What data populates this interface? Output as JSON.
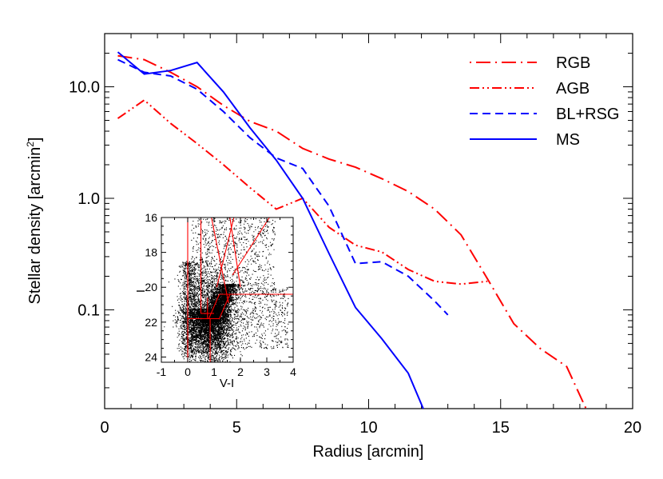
{
  "chart_data": [
    {
      "type": "line",
      "title": "",
      "xlabel": "Radius [arcmin]",
      "ylabel": "Stellar density [arcmin",
      "ylabel_sup": "2",
      "ylabel_close": "]",
      "xlim": [
        0,
        20
      ],
      "ylim": [
        0.013,
        30
      ],
      "yscale": "log",
      "x_ticks": [
        0,
        5,
        10,
        15,
        20
      ],
      "x_tick_labels": [
        "0",
        "5",
        "10",
        "15",
        "20"
      ],
      "y_ticks": [
        0.1,
        1.0,
        10.0
      ],
      "y_tick_labels": [
        "0.1",
        "1.0",
        "10.0"
      ],
      "grid": false,
      "legend_position": "top-right",
      "series": [
        {
          "name": "RGB",
          "color": "#ff0000",
          "dash": "long-dash",
          "x": [
            0.5,
            1.5,
            2.5,
            3.5,
            4.5,
            5.5,
            6.5,
            7.5,
            8.5,
            9.5,
            10.5,
            11.5,
            12.5,
            13.5,
            14.5,
            15.5,
            16.5,
            17.5,
            18.5
          ],
          "y": [
            19.0,
            17.5,
            13.5,
            10.0,
            6.8,
            4.9,
            4.0,
            2.8,
            2.25,
            1.9,
            1.5,
            1.15,
            0.8,
            0.47,
            0.19,
            0.075,
            0.045,
            0.031,
            0.0095
          ]
        },
        {
          "name": "AGB",
          "color": "#ff0000",
          "dash": "dash-dot-dot",
          "x": [
            0.5,
            1.5,
            2.5,
            3.5,
            4.5,
            5.5,
            6.5,
            7.5,
            8.5,
            9.5,
            10.5,
            11.5,
            12.5,
            13.5,
            14.5
          ],
          "y": [
            5.2,
            7.6,
            4.7,
            3.1,
            2.0,
            1.25,
            0.8,
            1.0,
            0.55,
            0.38,
            0.33,
            0.23,
            0.18,
            0.17,
            0.18
          ]
        },
        {
          "name": "BL+RSG",
          "color": "#0000ff",
          "dash": "short-dash",
          "x": [
            0.5,
            1.5,
            2.5,
            3.5,
            4.5,
            5.5,
            6.5,
            7.5,
            8.5,
            9.5,
            10.5,
            11.5,
            12.5,
            13.0
          ],
          "y": [
            17.5,
            13.5,
            12.5,
            9.5,
            6.0,
            3.5,
            2.3,
            1.85,
            0.85,
            0.26,
            0.27,
            0.2,
            0.12,
            0.09
          ]
        },
        {
          "name": "MS",
          "color": "#0000ff",
          "dash": "solid",
          "x": [
            0.5,
            1.5,
            2.5,
            3.5,
            4.5,
            5.5,
            6.5,
            7.5,
            8.5,
            9.5,
            10.5,
            11.5,
            12.1
          ],
          "y": [
            20.5,
            13.0,
            14.0,
            16.5,
            9.0,
            4.3,
            2.2,
            1.0,
            0.32,
            0.105,
            0.055,
            0.027,
            0.0125
          ]
        }
      ]
    },
    {
      "type": "scatter",
      "title": "",
      "xlabel": "V-I",
      "ylabel": "I",
      "xlim": [
        -1,
        4
      ],
      "ylim": [
        24.3,
        16
      ],
      "x_ticks": [
        -1,
        0,
        1,
        2,
        3,
        4
      ],
      "x_tick_labels": [
        "-1",
        "0",
        "1",
        "2",
        "3",
        "4"
      ],
      "y_ticks": [
        16,
        18,
        20,
        22,
        24
      ],
      "y_tick_labels": [
        "16",
        "18",
        "20",
        "22",
        "24"
      ],
      "point_color": "#000000",
      "selection_color": "#ff0000",
      "selection_boxes": [
        {
          "x": [
            0.0,
            0.0
          ],
          "y": [
            16.0,
            24.3
          ]
        },
        {
          "x": [
            0.5,
            0.5
          ],
          "y": [
            16.0,
            21.5
          ]
        },
        {
          "x": [
            0.5,
            1.0
          ],
          "y": [
            21.5,
            21.5
          ]
        },
        {
          "x": [
            0.75,
            0.75
          ],
          "y": [
            20.6,
            21.8
          ]
        },
        {
          "x": [
            0.85,
            0.85
          ],
          "y": [
            21.8,
            24.3
          ]
        },
        {
          "x": [
            0.0,
            0.85
          ],
          "y": [
            21.8,
            21.8
          ]
        },
        {
          "x": [
            0.9,
            1.55
          ],
          "y": [
            16.0,
            20.9
          ]
        },
        {
          "x": [
            1.1,
            1.75
          ],
          "y": [
            20.0,
            16.0
          ]
        },
        {
          "x": [
            1.6,
            2.0
          ],
          "y": [
            16.0,
            20.0
          ]
        },
        {
          "x": [
            1.9,
            2.3
          ],
          "y": [
            16.0,
            16.0
          ]
        },
        {
          "x": [
            1.7,
            3.1
          ],
          "y": [
            19.3,
            16.0
          ]
        },
        {
          "x": [
            1.2,
            4.0
          ],
          "y": [
            20.4,
            20.4
          ]
        },
        {
          "x": [
            1.2,
            0.8,
            1.2,
            1.6,
            1.2
          ],
          "y": [
            20.4,
            21.8,
            21.8,
            20.4,
            20.4
          ]
        }
      ]
    }
  ]
}
